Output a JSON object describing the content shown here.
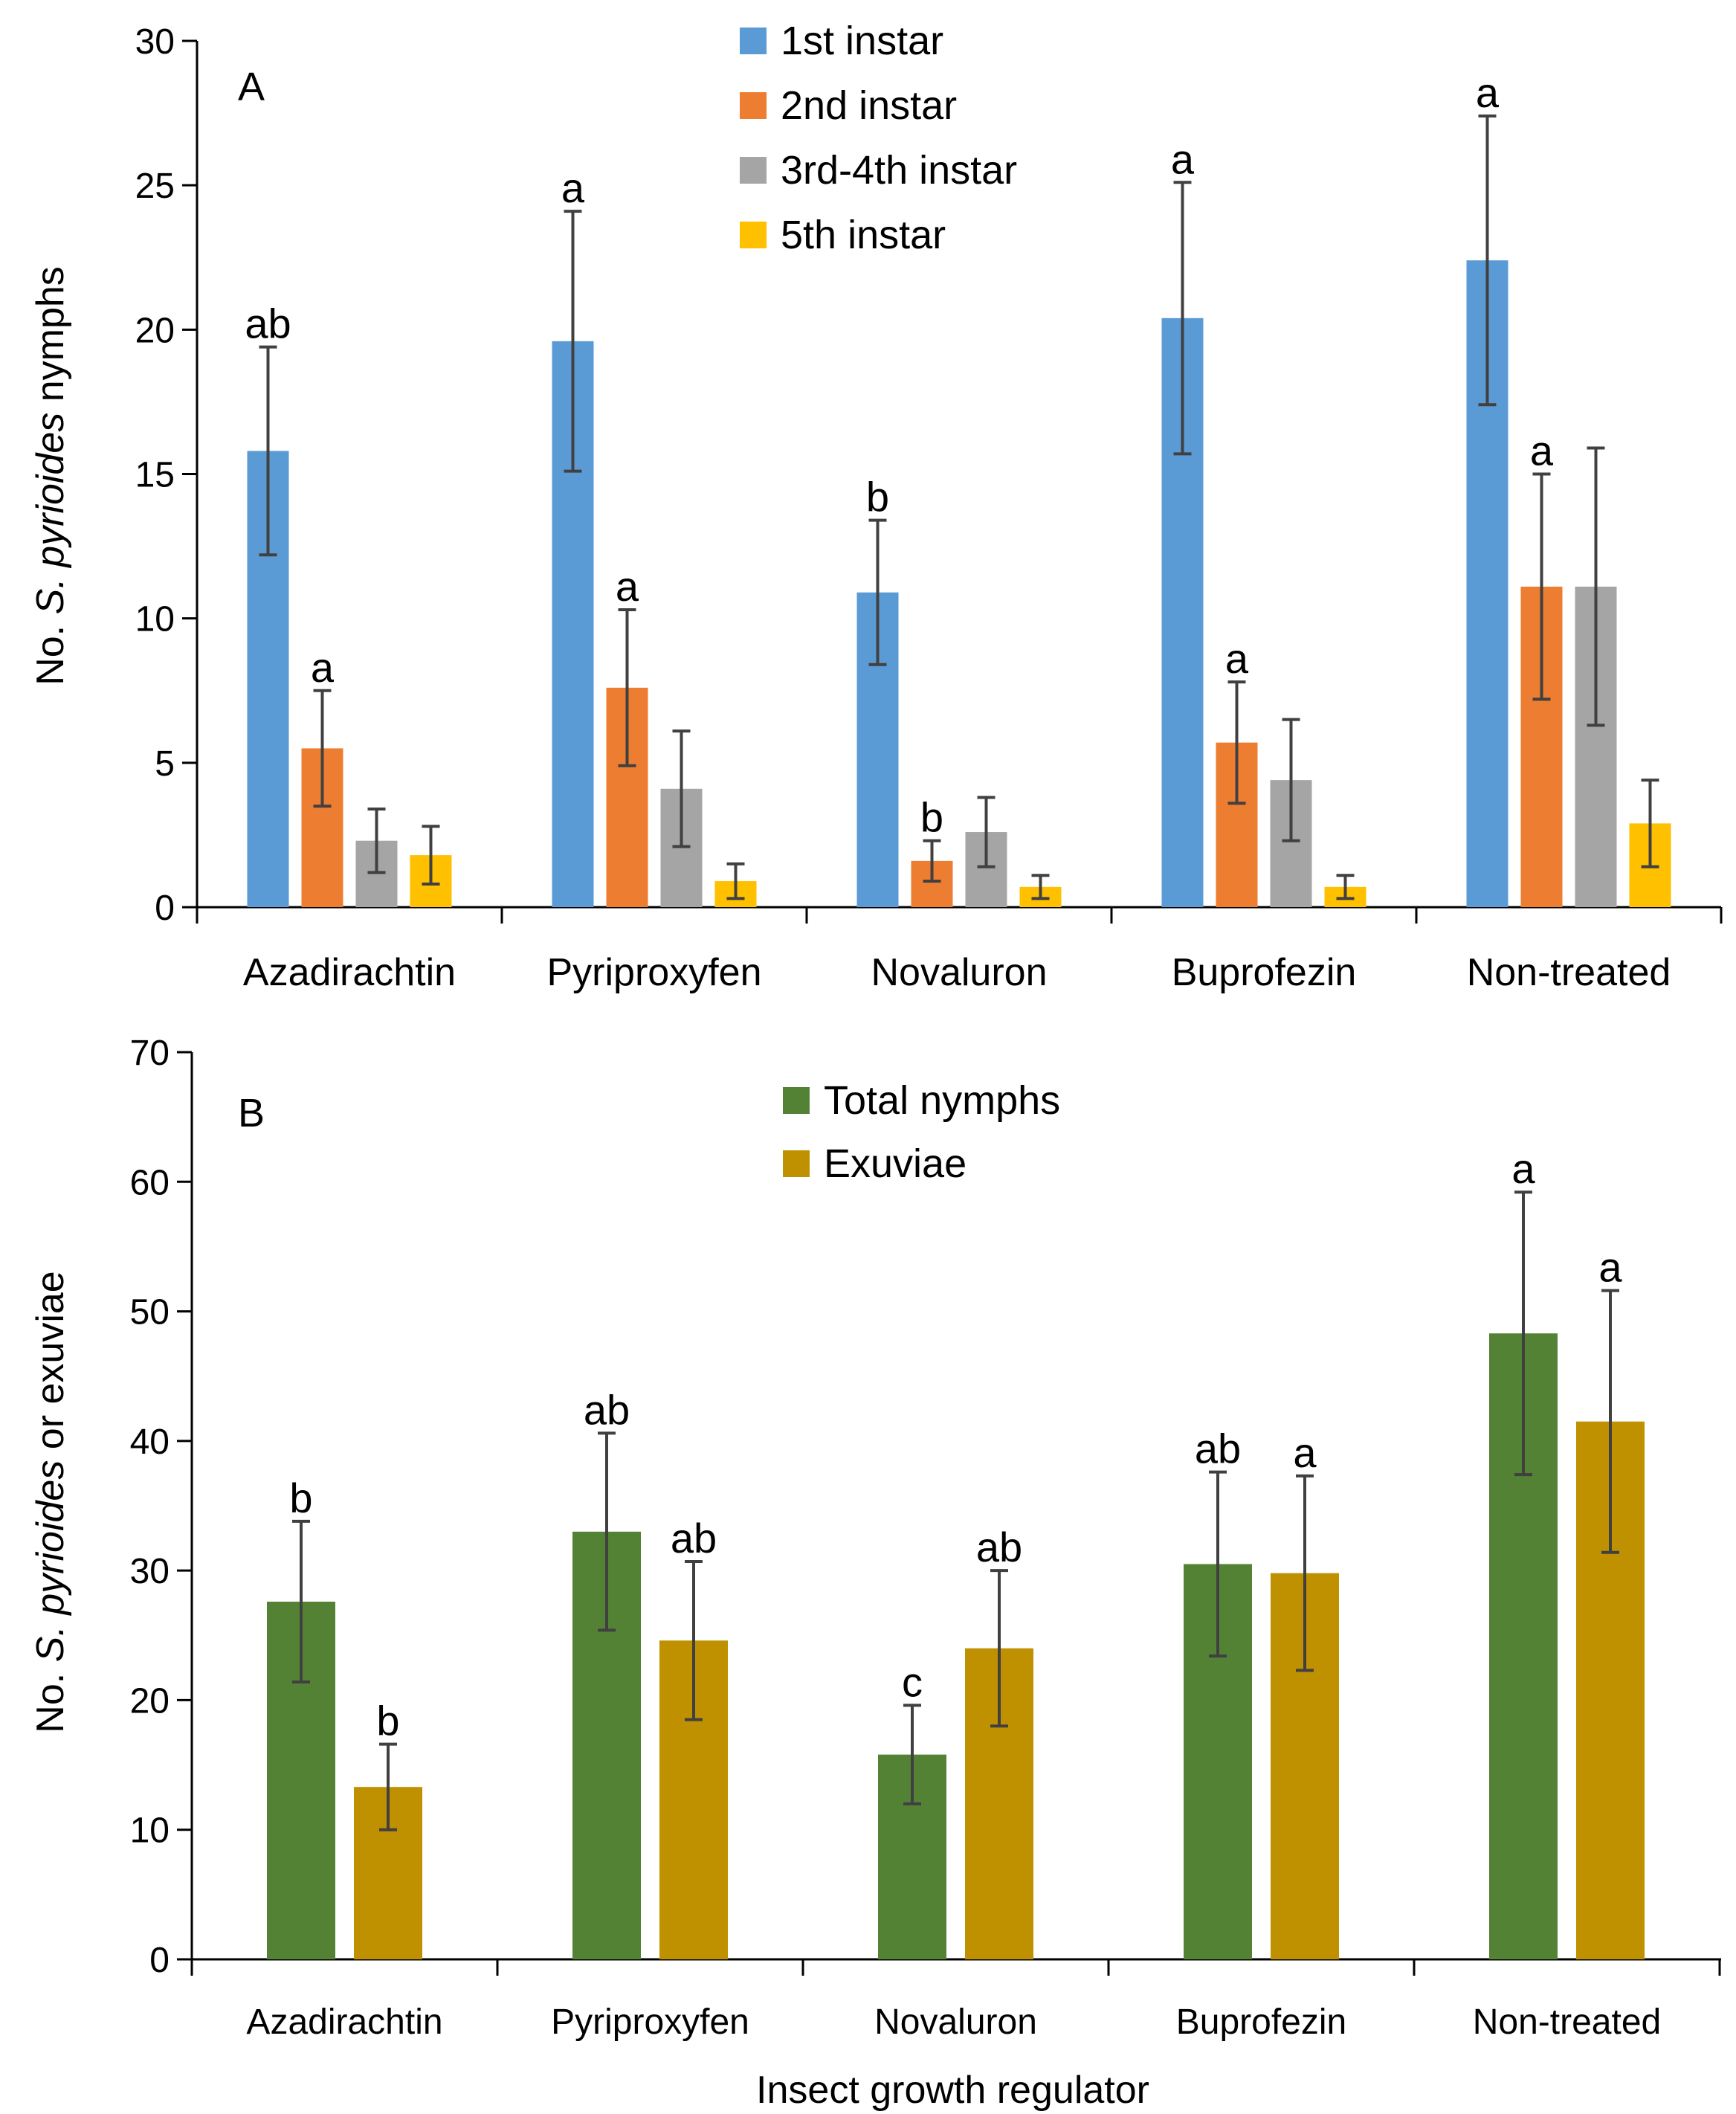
{
  "chart_data": [
    {
      "type": "bar",
      "panel_label": "A",
      "title": "",
      "xlabel": "",
      "ylabel_parts": [
        "No. ",
        "S. pyrioides",
        " nymphs"
      ],
      "categories": [
        "Azadirachtin",
        "Pyriproxyfen",
        "Novaluron",
        "Buprofezin",
        "Non-treated"
      ],
      "ylim": [
        0,
        30
      ],
      "yticks": [
        "0",
        "5",
        "10",
        "15",
        "20",
        "25",
        "30"
      ],
      "legend_position": "top-center",
      "series": [
        {
          "name": "1st instar",
          "color": "#5B9BD5",
          "values": [
            15.8,
            19.6,
            10.9,
            20.4,
            22.4
          ],
          "errors": [
            3.6,
            4.5,
            2.5,
            4.7,
            5.0
          ],
          "letters": [
            "ab",
            "a",
            "b",
            "a",
            "a"
          ]
        },
        {
          "name": "2nd instar",
          "color": "#ED7D31",
          "values": [
            5.5,
            7.6,
            1.6,
            5.7,
            11.1
          ],
          "errors": [
            2.0,
            2.7,
            0.7,
            2.1,
            3.9
          ],
          "letters": [
            "a",
            "a",
            "b",
            "a",
            "a"
          ]
        },
        {
          "name": "3rd-4th instar",
          "color": "#A5A5A5",
          "values": [
            2.3,
            4.1,
            2.6,
            4.4,
            11.1
          ],
          "errors": [
            1.1,
            2.0,
            1.2,
            2.1,
            4.8
          ],
          "letters": [
            "",
            "",
            "",
            "",
            ""
          ]
        },
        {
          "name": "5th instar",
          "color": "#FFC000",
          "values": [
            1.8,
            0.9,
            0.7,
            0.7,
            2.9
          ],
          "errors": [
            1.0,
            0.6,
            0.4,
            0.4,
            1.5
          ],
          "letters": [
            "",
            "",
            "",
            "",
            ""
          ]
        }
      ]
    },
    {
      "type": "bar",
      "panel_label": "B",
      "title": "",
      "xlabel": "Insect growth regulator",
      "ylabel_parts": [
        "No. ",
        "S. pyrioides",
        " or exuviae"
      ],
      "categories": [
        "Azadirachtin",
        "Pyriproxyfen",
        "Novaluron",
        "Buprofezin",
        "Non-treated"
      ],
      "ylim": [
        0,
        70
      ],
      "yticks": [
        "0",
        "10",
        "20",
        "30",
        "40",
        "50",
        "60",
        "70"
      ],
      "legend_position": "top-center",
      "series": [
        {
          "name": "Total nymphs",
          "color": "#548235",
          "values": [
            27.6,
            33.0,
            15.8,
            30.5,
            48.3
          ],
          "errors": [
            6.2,
            7.6,
            3.8,
            7.1,
            10.9
          ],
          "letters": [
            "b",
            "ab",
            "c",
            "ab",
            "a"
          ]
        },
        {
          "name": "Exuviae",
          "color": "#BF9000",
          "values": [
            13.3,
            24.6,
            24.0,
            29.8,
            41.5
          ],
          "errors": [
            3.3,
            6.1,
            6.0,
            7.5,
            10.1
          ],
          "letters": [
            "b",
            "ab",
            "ab",
            "a",
            "a"
          ]
        }
      ]
    }
  ]
}
